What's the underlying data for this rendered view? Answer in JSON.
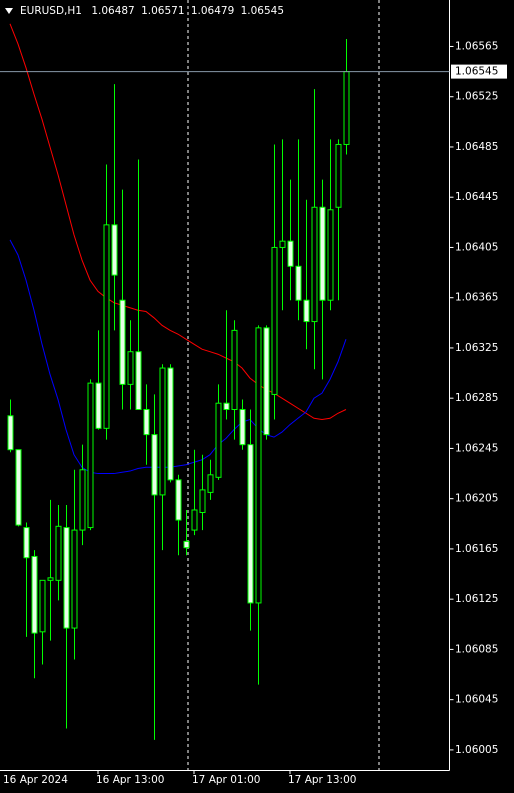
{
  "chart_data": {
    "type": "candlestick",
    "title": "EURUSD,H1",
    "axis_start_label": "16 Apr 2024",
    "categories": [
      null,
      null,
      null,
      null,
      null,
      null,
      null,
      null,
      null,
      null,
      null,
      "16 Apr 13:00",
      null,
      null,
      null,
      null,
      null,
      null,
      null,
      null,
      null,
      null,
      null,
      "17 Apr 01:00",
      null,
      null,
      null,
      null,
      null,
      null,
      null,
      null,
      null,
      null,
      null,
      "17 Apr 13:00",
      null,
      null,
      null,
      null,
      null,
      null,
      null
    ],
    "open": [
      1.06271,
      1.06244,
      1.06182,
      1.06159,
      1.06099,
      1.0614,
      1.0614,
      1.06182,
      1.06102,
      1.0618,
      1.06182,
      1.06297,
      1.06261,
      1.06423,
      1.06363,
      1.06296,
      1.06322,
      1.06276,
      1.06256,
      1.06208,
      1.06309,
      1.0622,
      1.06171,
      1.0618,
      1.06194,
      1.0621,
      1.06222,
      1.06281,
      1.06276,
      1.06276,
      1.06248,
      1.06122,
      1.06341,
      1.06288,
      1.06405,
      1.0641,
      1.0639,
      1.06363,
      1.06346,
      1.06437,
      1.06363,
      1.06437,
      1.06487
    ],
    "high": [
      1.06284,
      1.06244,
      1.06186,
      1.06164,
      1.0614,
      1.06204,
      1.062,
      1.062,
      1.06228,
      1.06248,
      1.063,
      1.06339,
      1.06471,
      1.06535,
      1.06451,
      1.06347,
      1.06475,
      1.06296,
      1.06288,
      1.06312,
      1.06312,
      1.06224,
      1.06196,
      1.06244,
      1.0624,
      1.06236,
      1.06296,
      1.06355,
      1.06347,
      1.06284,
      1.06276,
      1.06343,
      1.06343,
      1.06487,
      1.06491,
      1.06459,
      1.06491,
      1.06443,
      1.06531,
      1.06459,
      1.06491,
      1.06491,
      1.06571
    ],
    "low": [
      1.06242,
      1.06183,
      1.06095,
      1.06062,
      1.06073,
      1.06092,
      1.06124,
      1.06022,
      1.06077,
      1.06168,
      1.0618,
      1.0626,
      1.06252,
      1.06339,
      1.06276,
      1.06276,
      1.06276,
      1.06232,
      1.06013,
      1.06164,
      1.06218,
      1.0616,
      1.0616,
      1.06176,
      1.0618,
      1.06204,
      1.0622,
      1.06268,
      1.06252,
      1.06244,
      1.061,
      1.06057,
      1.06252,
      1.06268,
      1.06355,
      1.06363,
      1.06347,
      1.06324,
      1.06308,
      1.063,
      1.06355,
      1.06363,
      1.06479
    ],
    "close": [
      1.06244,
      1.06184,
      1.06158,
      1.06098,
      1.0614,
      1.06142,
      1.06183,
      1.06102,
      1.0618,
      1.06228,
      1.06297,
      1.06261,
      1.06423,
      1.06383,
      1.06296,
      1.06322,
      1.06276,
      1.06256,
      1.06208,
      1.06309,
      1.0622,
      1.06188,
      1.06166,
      1.06196,
      1.06212,
      1.06224,
      1.06281,
      1.06276,
      1.06339,
      1.06248,
      1.06122,
      1.06341,
      1.06256,
      1.06405,
      1.0641,
      1.0639,
      1.06363,
      1.06346,
      1.06437,
      1.06363,
      1.06435,
      1.06487,
      1.06545
    ],
    "candle_color": "#00ff00",
    "bull_fill": "#000000",
    "bear_fill": "#e8ffe8",
    "lines": [
      {
        "color": "#ff0000",
        "values": [
          1.06583,
          1.06567,
          1.06548,
          1.06527,
          1.06507,
          1.06485,
          1.06463,
          1.06439,
          1.06415,
          1.06395,
          1.06379,
          1.0637,
          1.06365,
          1.06361,
          1.06359,
          1.06357,
          1.06355,
          1.06354,
          1.06349,
          1.06343,
          1.06339,
          1.06336,
          1.06332,
          1.06328,
          1.06324,
          1.06322,
          1.0632,
          1.06317,
          1.06314,
          1.06309,
          1.06301,
          1.06296,
          1.06292,
          1.06289,
          1.06285,
          1.06281,
          1.06277,
          1.06273,
          1.06269,
          1.06268,
          1.06269,
          1.06273,
          1.06276
        ]
      },
      {
        "color": "#0000ff",
        "values": [
          1.06411,
          1.06399,
          1.06379,
          1.06355,
          1.06328,
          1.06304,
          1.06284,
          1.0626,
          1.0624,
          1.0623,
          1.06226,
          1.06225,
          1.06225,
          1.06225,
          1.06226,
          1.06227,
          1.06229,
          1.0623,
          1.0623,
          1.0623,
          1.0623,
          1.06231,
          1.06232,
          1.06234,
          1.06236,
          1.0624,
          1.06248,
          1.06253,
          1.0626,
          1.06266,
          1.06268,
          1.06261,
          1.06256,
          1.06254,
          1.06258,
          1.06264,
          1.06269,
          1.06274,
          1.06285,
          1.06289,
          1.063,
          1.06314,
          1.06332
        ]
      }
    ],
    "ylim": [
      1.05989,
      1.06602
    ],
    "yticks": [
      1.06565,
      1.06525,
      1.06485,
      1.06445,
      1.06405,
      1.06365,
      1.06325,
      1.06285,
      1.06245,
      1.06205,
      1.06165,
      1.06125,
      1.06085,
      1.06045,
      1.06005
    ]
  }
}
